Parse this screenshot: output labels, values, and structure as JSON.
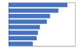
{
  "chart_data": {
    "type": "bar",
    "orientation": "horizontal",
    "categories": [
      null,
      null,
      null,
      null,
      null,
      null,
      null,
      null
    ],
    "values": [
      92,
      78,
      65,
      60,
      49,
      46,
      44,
      38
    ],
    "color": "#4472c4",
    "xlim": [
      0,
      105
    ],
    "grid": false,
    "tick_labels": false
  }
}
